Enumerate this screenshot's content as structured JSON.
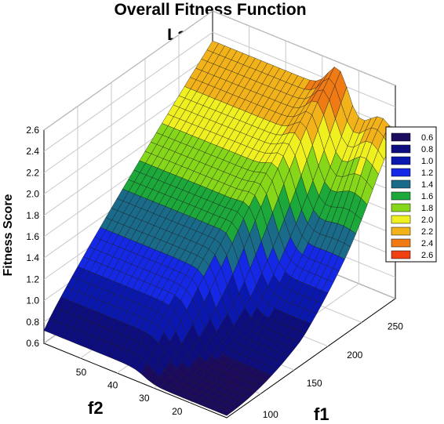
{
  "chart_data": {
    "type": "surface",
    "title_line1": "Overall Fitness Function",
    "title_line2": "Landscape",
    "zlabel": "Fitness Score",
    "xlabel": "f2",
    "ylabel": "f1",
    "zlim": [
      0.6,
      2.6
    ],
    "x_ticks": [
      50,
      40,
      30,
      20
    ],
    "y_ticks": [
      100,
      150,
      200,
      250
    ],
    "z_ticks": [
      0.6,
      0.8,
      1.0,
      1.2,
      1.4,
      1.6,
      1.8,
      2.0,
      2.2,
      2.4,
      2.6
    ],
    "z_tick_labels": [
      "0.6",
      "0.8",
      "1.0",
      "1.2",
      "1.4",
      "1.6",
      "1.8",
      "2.0",
      "2.2",
      "2.4",
      "2.6"
    ],
    "grid": true,
    "legend": {
      "placement": "right",
      "entries": [
        {
          "label": "0.6",
          "color": "#1c0a5e"
        },
        {
          "label": "0.8",
          "color": "#0d0d80"
        },
        {
          "label": "1.0",
          "color": "#0a18b0"
        },
        {
          "label": "1.2",
          "color": "#1428e6"
        },
        {
          "label": "1.4",
          "color": "#1a6a8a"
        },
        {
          "label": "1.6",
          "color": "#1ca83a"
        },
        {
          "label": "1.8",
          "color": "#86d61a"
        },
        {
          "label": "2.0",
          "color": "#f0f020"
        },
        {
          "label": "2.2",
          "color": "#f2b21a"
        },
        {
          "label": "2.4",
          "color": "#f07a14"
        },
        {
          "label": "2.6",
          "color": "#f04010"
        }
      ]
    }
  }
}
